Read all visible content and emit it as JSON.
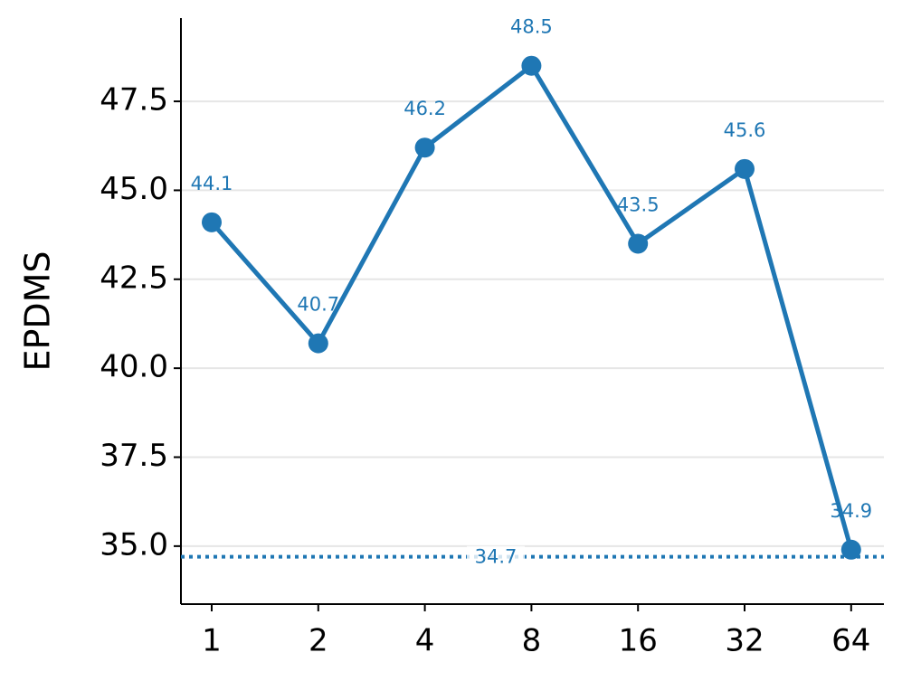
{
  "chart_data": {
    "type": "line",
    "y_label": "EPDMS",
    "categories": [
      "1",
      "2",
      "4",
      "8",
      "16",
      "32",
      "64"
    ],
    "series": [
      {
        "color": "#1f77b4",
        "values": [
          44.1,
          40.7,
          46.2,
          48.5,
          43.5,
          45.6,
          34.9
        ]
      }
    ],
    "reference_line": 34.7,
    "ylim": [
      33.37,
      49.84
    ],
    "yticks": [
      {
        "value": 35,
        "label": "35.0"
      },
      {
        "value": 37.5,
        "label": "37.5"
      },
      {
        "value": 40,
        "label": "40.0"
      },
      {
        "value": 42.5,
        "label": "42.5"
      },
      {
        "value": 45,
        "label": "45.0"
      },
      {
        "value": 47.5,
        "label": "47.5"
      }
    ],
    "grid": true
  }
}
